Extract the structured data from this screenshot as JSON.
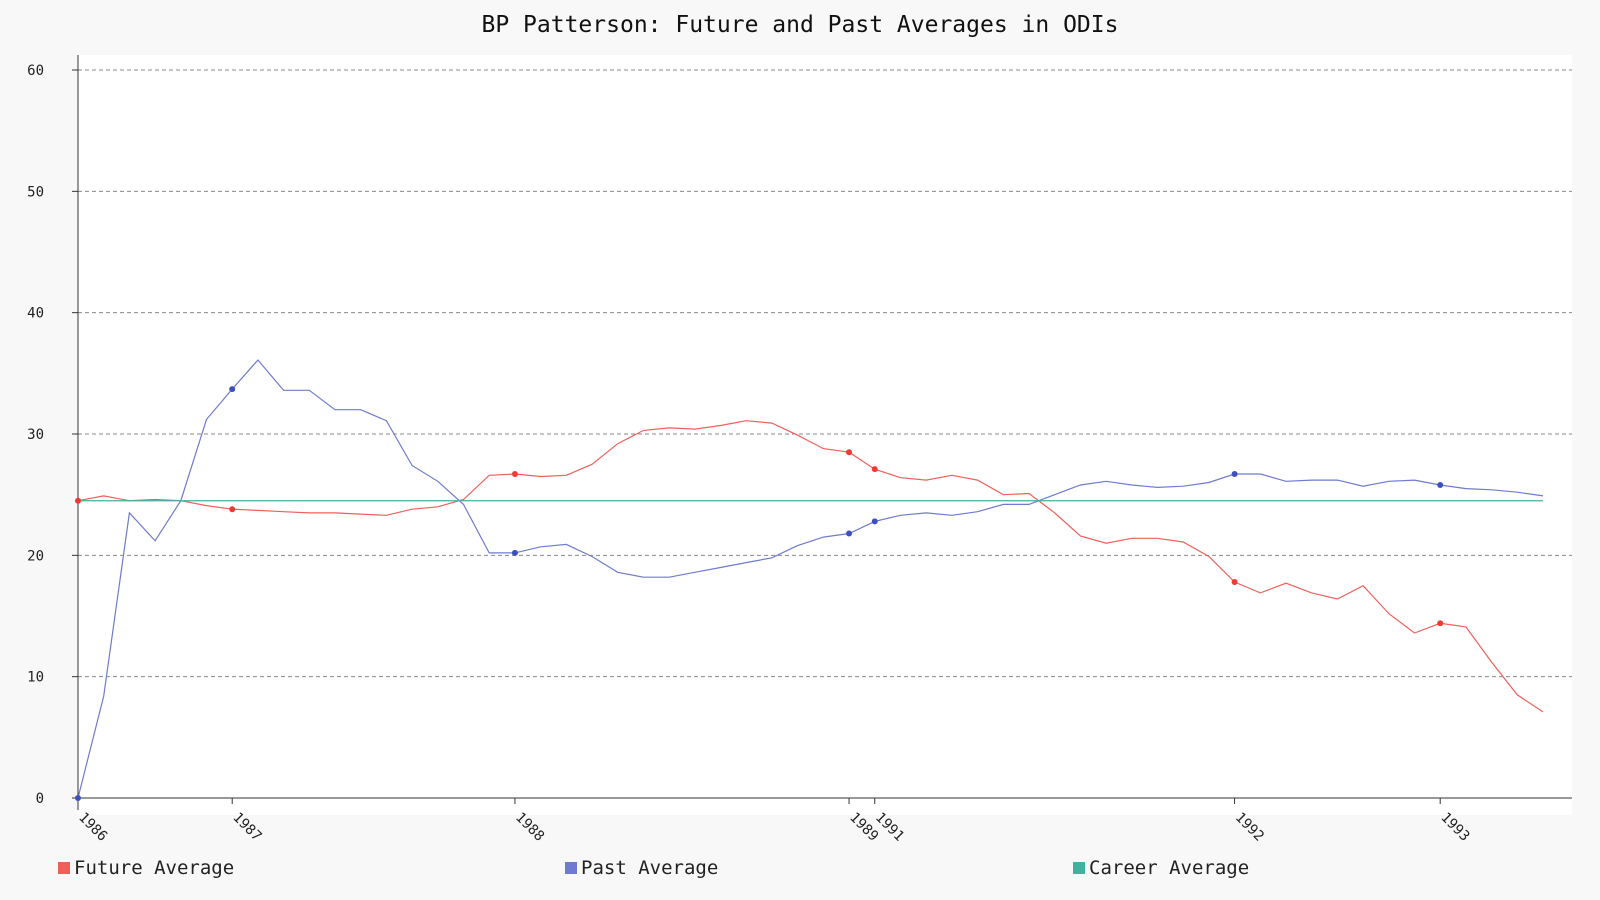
{
  "chart_data": {
    "type": "line",
    "title": "BP Patterson: Future and Past Averages in ODIs",
    "ylim": [
      0,
      61
    ],
    "yticks": [
      0,
      10,
      20,
      30,
      40,
      50,
      60
    ],
    "grid": true,
    "legend_position": "bottom",
    "x_tick_labels": [
      {
        "label": "1986",
        "index": 0
      },
      {
        "label": "1987",
        "index": 6
      },
      {
        "label": "1988",
        "index": 17
      },
      {
        "label": "1989",
        "index": 30
      },
      {
        "label": "1991",
        "index": 31
      },
      {
        "label": "1992",
        "index": 45
      },
      {
        "label": "1993",
        "index": 53
      }
    ],
    "series": [
      {
        "name": "Future Average",
        "color": "#f0605a",
        "markers_at": [
          0,
          6,
          17,
          30,
          31,
          45,
          53
        ],
        "values": [
          24.5,
          24.9,
          24.5,
          24.6,
          24.5,
          24.1,
          23.8,
          23.7,
          23.6,
          23.5,
          23.5,
          23.4,
          23.3,
          23.8,
          24.0,
          24.6,
          26.6,
          26.7,
          26.5,
          26.6,
          27.5,
          29.2,
          30.3,
          30.5,
          30.4,
          30.7,
          31.1,
          30.9,
          29.9,
          28.8,
          28.5,
          27.1,
          26.4,
          26.2,
          26.6,
          26.2,
          25.0,
          25.1,
          23.5,
          21.6,
          21.0,
          21.4,
          21.4,
          21.1,
          19.9,
          17.8,
          16.9,
          17.7,
          16.9,
          16.4,
          17.5,
          15.2,
          13.6,
          14.4,
          14.1,
          11.2,
          8.5,
          7.1
        ]
      },
      {
        "name": "Past Average",
        "color": "#6e7bd0",
        "markers_at": [
          0,
          6,
          17,
          30,
          31,
          45,
          53
        ],
        "values": [
          0.0,
          8.4,
          23.5,
          21.2,
          24.5,
          31.2,
          33.7,
          36.1,
          33.6,
          33.6,
          32.0,
          32.0,
          31.1,
          27.4,
          26.1,
          24.2,
          20.2,
          20.2,
          20.7,
          20.9,
          19.9,
          18.6,
          18.2,
          18.2,
          18.6,
          19.0,
          19.4,
          19.8,
          20.8,
          21.5,
          21.8,
          22.8,
          23.3,
          23.5,
          23.3,
          23.6,
          24.2,
          24.2,
          25.0,
          25.8,
          26.1,
          25.8,
          25.6,
          25.7,
          26.0,
          26.7,
          26.7,
          26.1,
          26.2,
          26.2,
          25.7,
          26.1,
          26.2,
          25.8,
          25.5,
          25.4,
          25.2,
          24.9
        ]
      },
      {
        "name": "Career Average",
        "color": "#3fb3a0",
        "constant": 24.5
      }
    ]
  }
}
